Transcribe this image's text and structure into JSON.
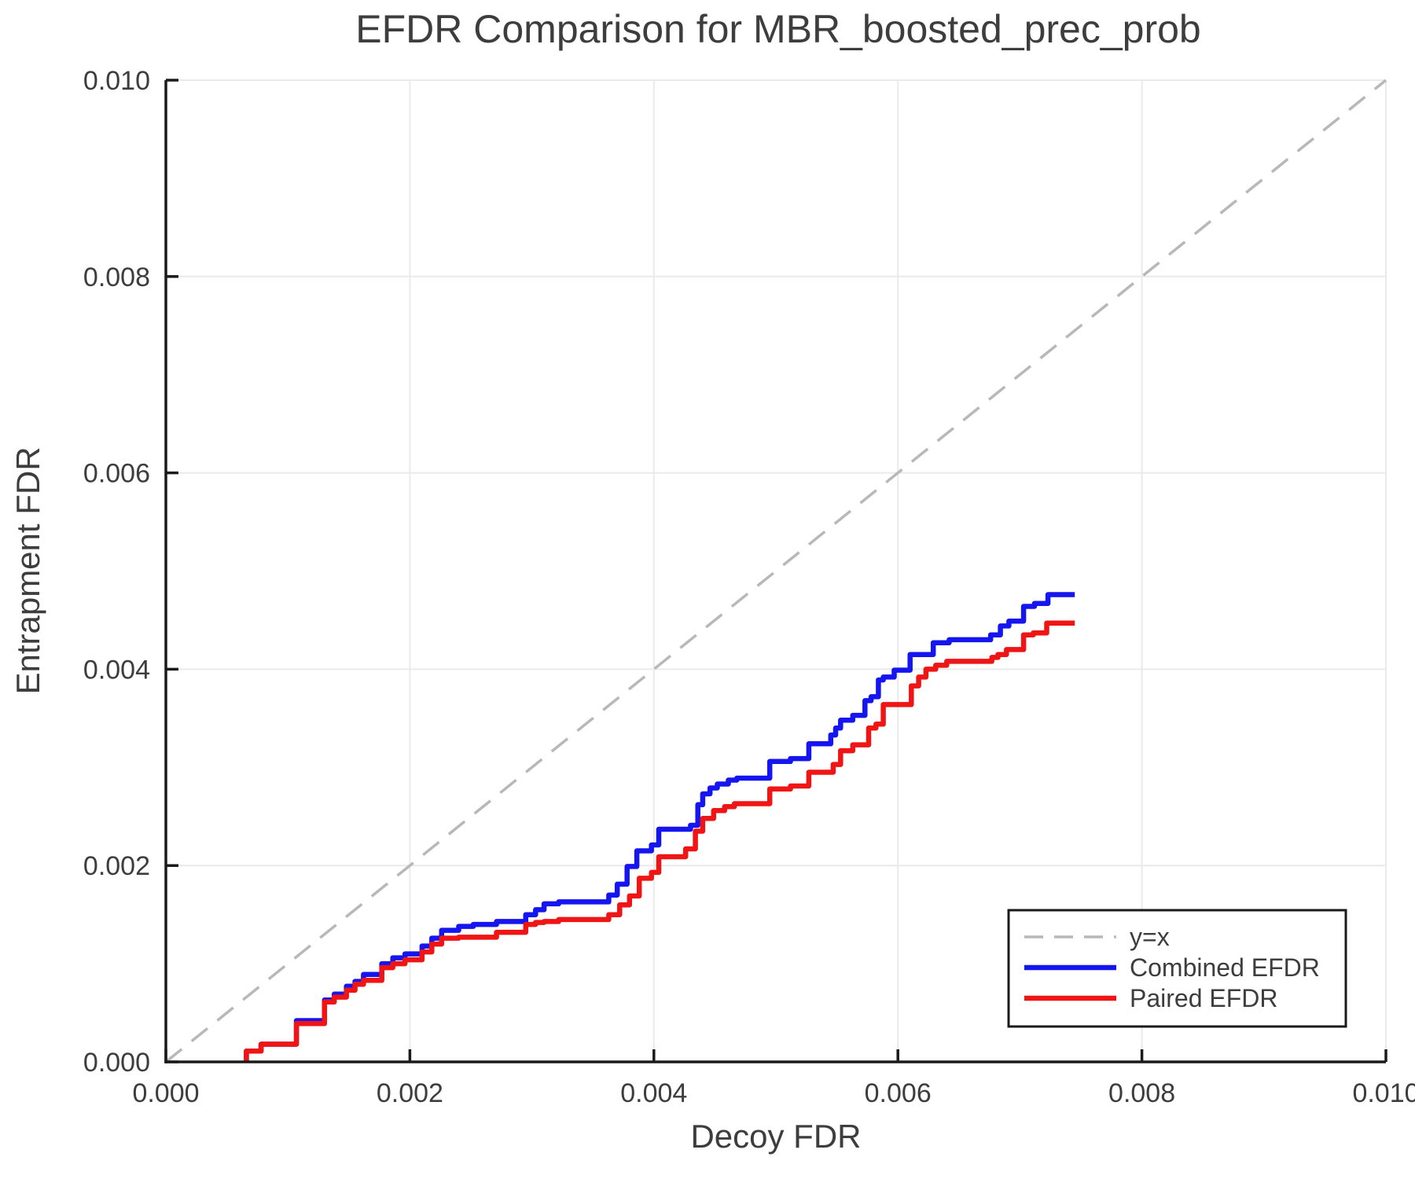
{
  "chart_data": {
    "type": "line",
    "title": "EFDR Comparison for MBR_boosted_prec_prob",
    "xlabel": "Decoy FDR",
    "ylabel": "Entrapment FDR",
    "xlim": [
      0.0,
      0.01
    ],
    "ylim": [
      0.0,
      0.01
    ],
    "xticks": [
      0.0,
      0.002,
      0.004,
      0.006,
      0.008,
      0.01
    ],
    "xtick_labels": [
      "0.000",
      "0.002",
      "0.004",
      "0.006",
      "0.008",
      "0.010"
    ],
    "yticks": [
      0.0,
      0.002,
      0.004,
      0.006,
      0.008,
      0.01
    ],
    "ytick_labels": [
      "0.000",
      "0.002",
      "0.004",
      "0.006",
      "0.008",
      "0.010"
    ],
    "grid": true,
    "colors": {
      "grid": "#eaeaea",
      "spine": "#1a1a1a",
      "text": "#3d3d3d",
      "identity": "#b8b8b8"
    },
    "reference_line": {
      "label": "y=x",
      "style": "dashed",
      "color": "#b8b8b8",
      "from": [
        0.0,
        0.0
      ],
      "to": [
        0.01,
        0.01
      ]
    },
    "series": [
      {
        "name": "Combined EFDR",
        "color": "#1515f0",
        "step": true,
        "points": [
          [
            0.00066,
            0
          ],
          [
            0.00066,
            0.00011
          ],
          [
            0.00078,
            0.00018
          ],
          [
            0.00107,
            0.00042
          ],
          [
            0.0013,
            0.00063
          ],
          [
            0.00138,
            0.00069
          ],
          [
            0.00148,
            0.00077
          ],
          [
            0.00155,
            0.00082
          ],
          [
            0.00162,
            0.00089
          ],
          [
            0.00177,
            0.001
          ],
          [
            0.00186,
            0.00106
          ],
          [
            0.00196,
            0.0011
          ],
          [
            0.0021,
            0.00118
          ],
          [
            0.00218,
            0.00126
          ],
          [
            0.00226,
            0.00134
          ],
          [
            0.0024,
            0.00138
          ],
          [
            0.00252,
            0.0014
          ],
          [
            0.00271,
            0.00143
          ],
          [
            0.00295,
            0.0015
          ],
          [
            0.00303,
            0.00155
          ],
          [
            0.0031,
            0.00161
          ],
          [
            0.00322,
            0.00163
          ],
          [
            0.00363,
            0.0017
          ],
          [
            0.0037,
            0.00181
          ],
          [
            0.00378,
            0.00199
          ],
          [
            0.00386,
            0.00215
          ],
          [
            0.00398,
            0.00221
          ],
          [
            0.00404,
            0.00237
          ],
          [
            0.0043,
            0.00241
          ],
          [
            0.00436,
            0.00262
          ],
          [
            0.0044,
            0.00273
          ],
          [
            0.00446,
            0.00279
          ],
          [
            0.00452,
            0.00283
          ],
          [
            0.00461,
            0.00287
          ],
          [
            0.00468,
            0.00289
          ],
          [
            0.00495,
            0.00306
          ],
          [
            0.00512,
            0.00309
          ],
          [
            0.00527,
            0.00324
          ],
          [
            0.00545,
            0.00333
          ],
          [
            0.00549,
            0.0034
          ],
          [
            0.00553,
            0.00348
          ],
          [
            0.00563,
            0.00353
          ],
          [
            0.00573,
            0.00368
          ],
          [
            0.00578,
            0.00372
          ],
          [
            0.00584,
            0.00389
          ],
          [
            0.00588,
            0.00392
          ],
          [
            0.00597,
            0.00399
          ],
          [
            0.0061,
            0.00415
          ],
          [
            0.00629,
            0.00427
          ],
          [
            0.00642,
            0.0043
          ],
          [
            0.00676,
            0.00435
          ],
          [
            0.00684,
            0.00444
          ],
          [
            0.00691,
            0.00449
          ],
          [
            0.00703,
            0.00464
          ],
          [
            0.00712,
            0.00467
          ],
          [
            0.00723,
            0.00476
          ],
          [
            0.00745,
            0.00476
          ]
        ]
      },
      {
        "name": "Paired EFDR",
        "color": "#f01515",
        "step": true,
        "points": [
          [
            0.00066,
            0
          ],
          [
            0.00066,
            0.00011
          ],
          [
            0.00078,
            0.00018
          ],
          [
            0.00107,
            0.00039
          ],
          [
            0.0013,
            0.00061
          ],
          [
            0.00138,
            0.00066
          ],
          [
            0.00148,
            0.00073
          ],
          [
            0.00155,
            0.00079
          ],
          [
            0.00162,
            0.00083
          ],
          [
            0.00177,
            0.00096
          ],
          [
            0.00186,
            0.001
          ],
          [
            0.00196,
            0.00104
          ],
          [
            0.0021,
            0.00112
          ],
          [
            0.00218,
            0.0012
          ],
          [
            0.00226,
            0.00126
          ],
          [
            0.0024,
            0.00127
          ],
          [
            0.00271,
            0.00132
          ],
          [
            0.00295,
            0.0014
          ],
          [
            0.00303,
            0.00142
          ],
          [
            0.0031,
            0.00143
          ],
          [
            0.00322,
            0.00145
          ],
          [
            0.00363,
            0.0015
          ],
          [
            0.00372,
            0.0016
          ],
          [
            0.0038,
            0.00169
          ],
          [
            0.00388,
            0.00187
          ],
          [
            0.00398,
            0.00193
          ],
          [
            0.00404,
            0.00209
          ],
          [
            0.00426,
            0.00217
          ],
          [
            0.00434,
            0.00235
          ],
          [
            0.0044,
            0.00248
          ],
          [
            0.00449,
            0.00256
          ],
          [
            0.00458,
            0.0026
          ],
          [
            0.00466,
            0.00263
          ],
          [
            0.00495,
            0.00278
          ],
          [
            0.00512,
            0.00281
          ],
          [
            0.00527,
            0.00295
          ],
          [
            0.00547,
            0.00303
          ],
          [
            0.00553,
            0.00317
          ],
          [
            0.00563,
            0.00323
          ],
          [
            0.00576,
            0.0034
          ],
          [
            0.00582,
            0.00344
          ],
          [
            0.00588,
            0.00364
          ],
          [
            0.00611,
            0.00383
          ],
          [
            0.00617,
            0.00392
          ],
          [
            0.00623,
            0.004
          ],
          [
            0.00631,
            0.00404
          ],
          [
            0.0064,
            0.00408
          ],
          [
            0.00677,
            0.00412
          ],
          [
            0.00682,
            0.00415
          ],
          [
            0.00689,
            0.0042
          ],
          [
            0.00703,
            0.00435
          ],
          [
            0.00711,
            0.00437
          ],
          [
            0.00722,
            0.00447
          ],
          [
            0.00745,
            0.00447
          ]
        ]
      }
    ],
    "legend": {
      "position": "lower right",
      "items": [
        {
          "label": "y=x",
          "color": "#b8b8b8",
          "dashed": true
        },
        {
          "label": "Combined EFDR",
          "color": "#1515f0",
          "dashed": false
        },
        {
          "label": "Paired EFDR",
          "color": "#f01515",
          "dashed": false
        }
      ]
    }
  }
}
